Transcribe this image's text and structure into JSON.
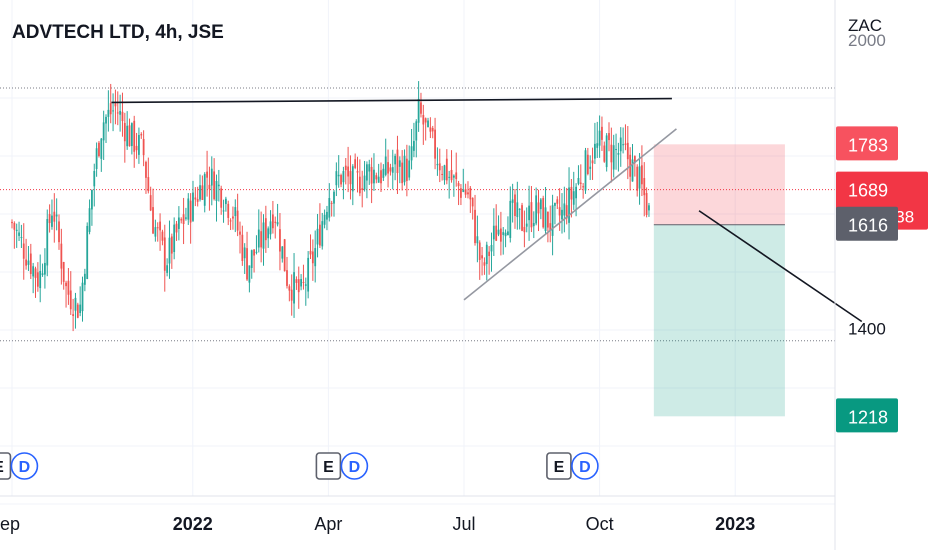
{
  "header": {
    "title": "ADVTECH LTD, 4h, JSE",
    "currency": "ZAC"
  },
  "colors": {
    "up": "#26a69a",
    "down": "#ef5350",
    "stop": "#f7525f",
    "last": "#f23645",
    "entry": "#5d606b",
    "target": "#089981",
    "trend": "#131722",
    "support": "#9598a1"
  },
  "chart_data": {
    "type": "candlestick",
    "symbol": "ADVTECH LTD",
    "interval": "4h",
    "exchange": "JSE",
    "y_ticks": [
      {
        "value": 2000,
        "label": "2000"
      },
      {
        "value": 1400,
        "label": "1400"
      }
    ],
    "x_ticks": [
      {
        "t": 0,
        "label": "ep"
      },
      {
        "t": 4,
        "label": "2022"
      },
      {
        "t": 7,
        "label": "Apr"
      },
      {
        "t": 10,
        "label": "Jul"
      },
      {
        "t": 13,
        "label": "Oct"
      },
      {
        "t": 16,
        "label": "2023"
      }
    ],
    "price_labels": {
      "stop": {
        "value": 1783,
        "label": "1783"
      },
      "last": {
        "value": 1689,
        "label": "1689",
        "countdown": "03:53:38"
      },
      "entry": {
        "value": 1616,
        "label": "1616"
      },
      "target": {
        "value": 1218,
        "label": "1218"
      }
    },
    "horizontal_levels": [
      1900,
      1375
    ],
    "earnings_events": [
      {
        "t": -0.3,
        "e": "E",
        "d": "D"
      },
      {
        "t": 7.0,
        "e": "E",
        "d": "D"
      },
      {
        "t": 12.1,
        "e": "E",
        "d": "D"
      }
    ],
    "trendlines": [
      {
        "name": "resistance",
        "points": [
          [
            2.2,
            1870
          ],
          [
            14.6,
            1878
          ]
        ]
      },
      {
        "name": "rising-support",
        "points": [
          [
            10.0,
            1460
          ],
          [
            14.7,
            1815
          ]
        ]
      },
      {
        "name": "projection",
        "points": [
          [
            15.2,
            1645
          ],
          [
            18.8,
            1415
          ]
        ]
      }
    ],
    "position": {
      "entry_t": 14.2,
      "end_t": 17.1,
      "entry": 1616,
      "stop": 1783,
      "target": 1218
    },
    "series": [
      {
        "t": 0.0,
        "c": 1620
      },
      {
        "t": 0.3,
        "c": 1560
      },
      {
        "t": 0.6,
        "c": 1500
      },
      {
        "t": 0.9,
        "c": 1660
      },
      {
        "t": 1.2,
        "c": 1480
      },
      {
        "t": 1.5,
        "c": 1440
      },
      {
        "t": 1.8,
        "c": 1720
      },
      {
        "t": 2.0,
        "c": 1830
      },
      {
        "t": 2.3,
        "c": 1860
      },
      {
        "t": 2.6,
        "c": 1800
      },
      {
        "t": 2.9,
        "c": 1770
      },
      {
        "t": 3.1,
        "c": 1630
      },
      {
        "t": 3.4,
        "c": 1540
      },
      {
        "t": 3.7,
        "c": 1610
      },
      {
        "t": 4.0,
        "c": 1660
      },
      {
        "t": 4.3,
        "c": 1720
      },
      {
        "t": 4.6,
        "c": 1690
      },
      {
        "t": 4.9,
        "c": 1640
      },
      {
        "t": 5.2,
        "c": 1530
      },
      {
        "t": 5.5,
        "c": 1580
      },
      {
        "t": 5.8,
        "c": 1650
      },
      {
        "t": 6.1,
        "c": 1500
      },
      {
        "t": 6.4,
        "c": 1470
      },
      {
        "t": 6.7,
        "c": 1560
      },
      {
        "t": 7.0,
        "c": 1680
      },
      {
        "t": 7.3,
        "c": 1720
      },
      {
        "t": 7.6,
        "c": 1700
      },
      {
        "t": 7.9,
        "c": 1730
      },
      {
        "t": 8.2,
        "c": 1720
      },
      {
        "t": 8.5,
        "c": 1740
      },
      {
        "t": 8.8,
        "c": 1730
      },
      {
        "t": 9.0,
        "c": 1850
      },
      {
        "t": 9.2,
        "c": 1800
      },
      {
        "t": 9.5,
        "c": 1740
      },
      {
        "t": 9.8,
        "c": 1700
      },
      {
        "t": 10.1,
        "c": 1680
      },
      {
        "t": 10.4,
        "c": 1520
      },
      {
        "t": 10.7,
        "c": 1600
      },
      {
        "t": 11.0,
        "c": 1640
      },
      {
        "t": 11.3,
        "c": 1620
      },
      {
        "t": 11.6,
        "c": 1650
      },
      {
        "t": 11.9,
        "c": 1620
      },
      {
        "t": 12.2,
        "c": 1640
      },
      {
        "t": 12.5,
        "c": 1700
      },
      {
        "t": 12.8,
        "c": 1760
      },
      {
        "t": 13.0,
        "c": 1780
      },
      {
        "t": 13.3,
        "c": 1770
      },
      {
        "t": 13.6,
        "c": 1760
      },
      {
        "t": 13.9,
        "c": 1700
      },
      {
        "t": 14.1,
        "c": 1640
      }
    ]
  }
}
